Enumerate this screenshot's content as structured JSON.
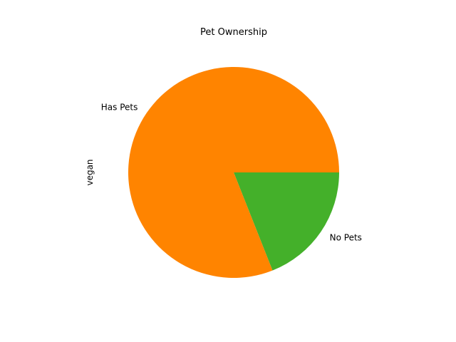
{
  "chart_data": {
    "type": "pie",
    "title": "Pet Ownership",
    "ylabel": "vegan",
    "categories": [
      "No Pets",
      "Has Pets"
    ],
    "values": [
      19,
      81
    ],
    "colors": [
      "#44b02a",
      "#ff8400"
    ],
    "start_angle_deg": 0,
    "direction": "clockwise",
    "legend": false
  }
}
